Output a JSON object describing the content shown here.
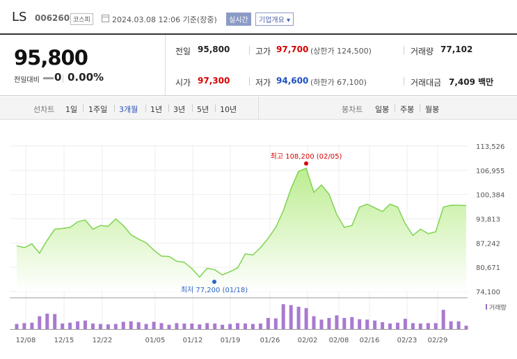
{
  "header": {
    "name": "LS",
    "code": "006260",
    "market": "코스피",
    "timestamp": "2024.03.08 12:06 기준(장중)",
    "realtime": "실시간",
    "overview": "기업개요",
    "overview_arrow": "▾"
  },
  "price": {
    "current": "95,800",
    "change_label": "전일대비",
    "change": "0",
    "change_pct": "0.00%"
  },
  "summary": {
    "prev_close_label": "전일",
    "prev_close": "95,800",
    "high_label": "고가",
    "high": "97,700",
    "upper_limit": "(상한가 124,500)",
    "volume_label": "거래량",
    "volume": "77,102",
    "open_label": "시가",
    "open": "97,300",
    "low_label": "저가",
    "low": "94,600",
    "lower_limit": "(하한가 67,100)",
    "value_label": "거래대금",
    "value": "7,409 백만"
  },
  "tabs": {
    "line_label": "선차트",
    "line_items": [
      "1일",
      "1주일",
      "3개월",
      "1년",
      "3년",
      "5년",
      "10년"
    ],
    "active": "3개월",
    "candle_label": "봉차트",
    "candle_items": [
      "일봉",
      "주봉",
      "월봉"
    ]
  },
  "chart_data": {
    "type": "area",
    "y_ticks": [
      "113,526",
      "106,955",
      "100,384",
      "93,813",
      "87,242",
      "80,671",
      "74,100"
    ],
    "ylim": [
      74100,
      113526
    ],
    "x_labels": [
      "12/08",
      "12/15",
      "12/22",
      "01/05",
      "01/12",
      "01/19",
      "01/26",
      "02/02",
      "02/08",
      "02/16",
      "02/23",
      "02/29"
    ],
    "series": [
      {
        "values": [
          86500,
          86000,
          87000,
          84500,
          88000,
          91000,
          91200,
          91500,
          93000,
          93500,
          91000,
          92000,
          91800,
          93800,
          92000,
          89500,
          88300,
          87300,
          85300,
          83700,
          83600,
          82300,
          82000,
          80300,
          78000,
          80400,
          80000,
          78600,
          79500,
          80500,
          84300,
          84000,
          86000,
          88500,
          91500,
          96000,
          102000,
          106700,
          107500,
          101000,
          103000,
          100500,
          95000,
          91500,
          92000,
          97000,
          97800,
          96800,
          95800,
          97800,
          97000,
          92500,
          89300,
          91000,
          89800,
          90300,
          97000,
          97500,
          97500,
          97400
        ],
        "volume": [
          12,
          14,
          15,
          30,
          36,
          35,
          13,
          15,
          18,
          20,
          13,
          12,
          11,
          12,
          17,
          18,
          16,
          12,
          17,
          14,
          10,
          14,
          13,
          13,
          11,
          14,
          13,
          10,
          12,
          14,
          13,
          12,
          13,
          26,
          25,
          58,
          56,
          52,
          49,
          30,
          22,
          26,
          32,
          26,
          28,
          23,
          22,
          20,
          16,
          13,
          15,
          24,
          14,
          13,
          14,
          14,
          45,
          18,
          18,
          8
        ]
      }
    ],
    "annotations": {
      "high": "최고 108,200 (02/05)",
      "low": "최저 77,200 (01/18)"
    },
    "volume_legend": "거래량"
  }
}
